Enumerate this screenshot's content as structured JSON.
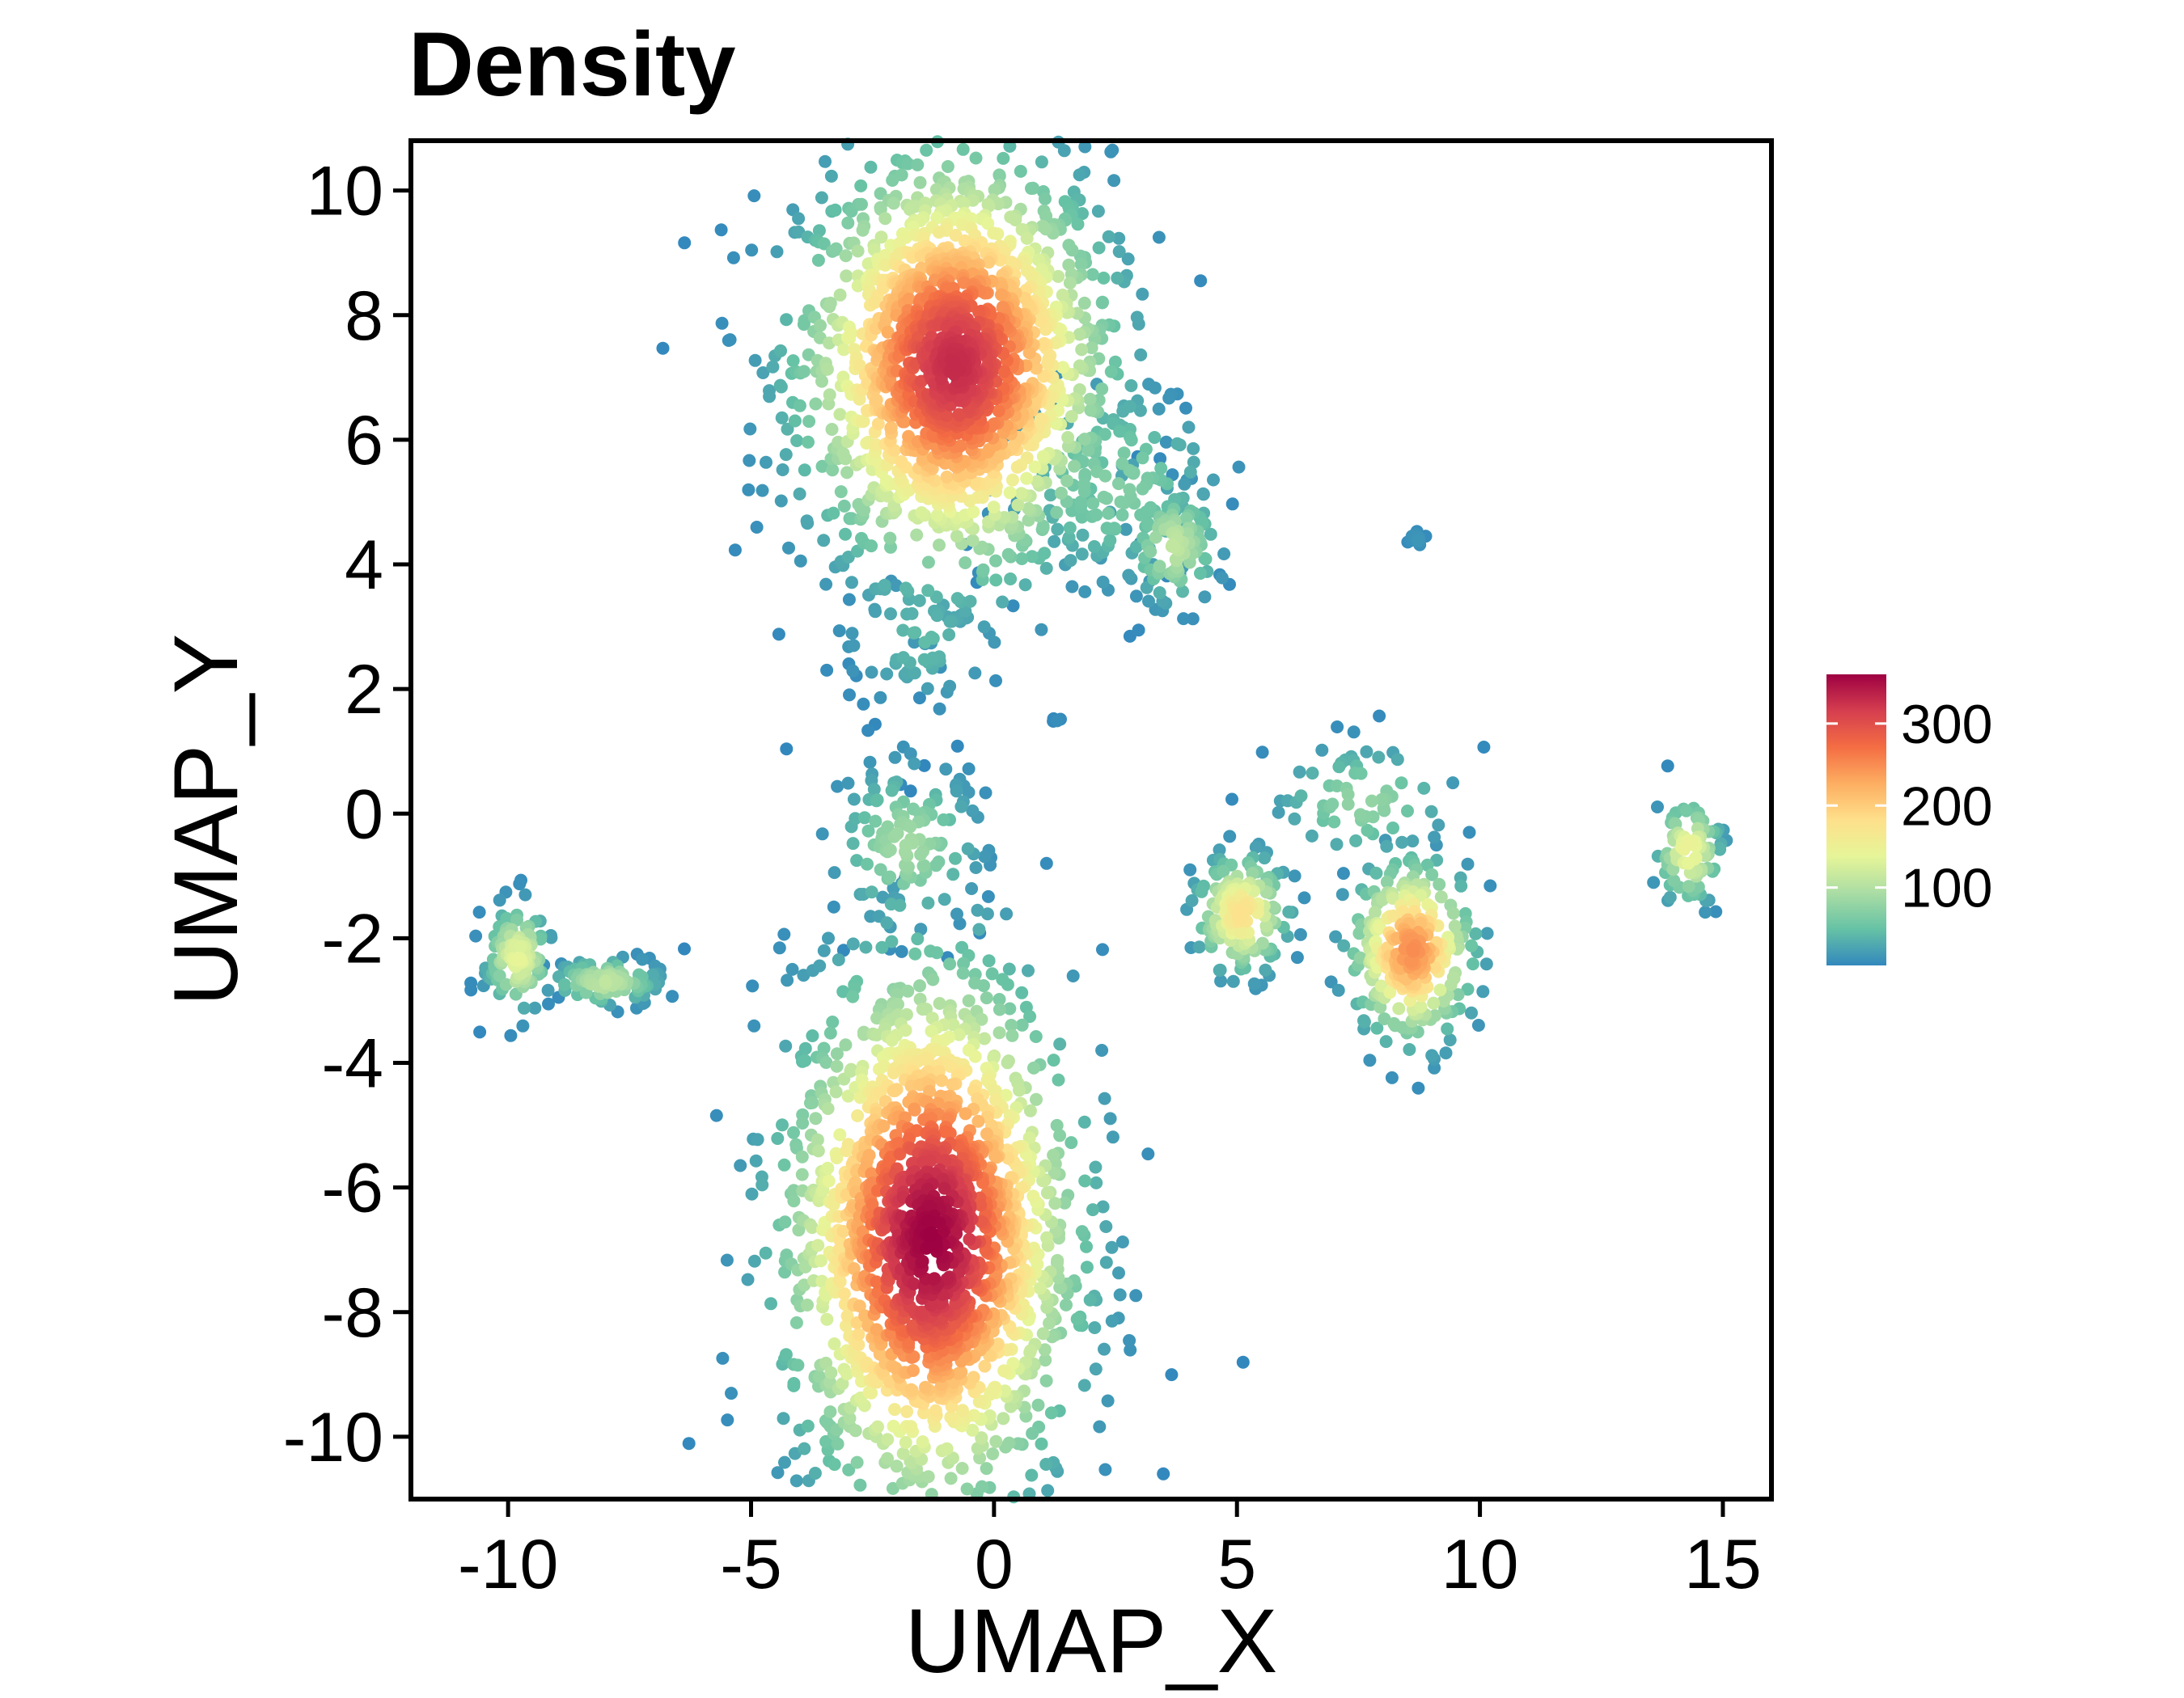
{
  "chart_data": {
    "type": "scatter",
    "title": "Density",
    "xlabel": "UMAP_X",
    "ylabel": "UMAP_Y",
    "xlim": [
      -12,
      16
    ],
    "ylim": [
      -11,
      10.8
    ],
    "x_ticks": [
      -10,
      -5,
      0,
      5,
      10,
      15
    ],
    "x_tick_labels": [
      "-10",
      "-5",
      "0",
      "5",
      "10",
      "15"
    ],
    "y_ticks": [
      10,
      8,
      6,
      4,
      2,
      0,
      -2,
      -4,
      -6,
      -8,
      -10
    ],
    "y_tick_labels": [
      "10",
      "8",
      "6",
      "4",
      "2",
      "0",
      "-2",
      "-4",
      "-6",
      "-8",
      "-10"
    ],
    "grid": false,
    "color_scale": {
      "name": "Spectral (reversed)",
      "min": 5,
      "max": 360,
      "ticks": [
        300,
        200,
        100
      ],
      "tick_labels": [
        "300",
        "200",
        "100"
      ],
      "stops": [
        "#3288bd",
        "#66c2a5",
        "#abdda4",
        "#e6f598",
        "#fee08b",
        "#fdae61",
        "#f46d43",
        "#d53e4f",
        "#9e0142"
      ]
    },
    "legend_position": "right",
    "clusters": [
      {
        "center": [
          -0.8,
          7.2
        ],
        "sd": [
          1.6,
          1.7
        ],
        "n": 1600,
        "peak_density": 330
      },
      {
        "center": [
          -1.3,
          -6.8
        ],
        "sd": [
          1.5,
          2.2
        ],
        "n": 1700,
        "peak_density": 360
      },
      {
        "center": [
          -9.8,
          -2.3
        ],
        "sd": [
          0.35,
          0.45
        ],
        "n": 120,
        "peak_density": 140
      },
      {
        "center": [
          -8,
          -2.7
        ],
        "sd": [
          0.6,
          0.2
        ],
        "n": 90,
        "peak_density": 110
      },
      {
        "center": [
          5.1,
          -1.6
        ],
        "sd": [
          0.5,
          0.5
        ],
        "n": 160,
        "peak_density": 180
      },
      {
        "center": [
          8.6,
          -2.2
        ],
        "sd": [
          0.65,
          0.75
        ],
        "n": 280,
        "peak_density": 250
      },
      {
        "center": [
          14.3,
          -0.6
        ],
        "sd": [
          0.35,
          0.45
        ],
        "n": 90,
        "peak_density": 150
      },
      {
        "center": [
          3.7,
          4.3
        ],
        "sd": [
          0.5,
          0.5
        ],
        "n": 100,
        "peak_density": 110
      },
      {
        "center": [
          -1.8,
          -0.5
        ],
        "sd": [
          0.8,
          0.7
        ],
        "n": 130,
        "peak_density": 90
      },
      {
        "center": [
          2.5,
          5.3
        ],
        "sd": [
          1.2,
          0.9
        ],
        "n": 140,
        "peak_density": 70
      },
      {
        "center": [
          -1.5,
          2.8
        ],
        "sd": [
          0.9,
          0.6
        ],
        "n": 60,
        "peak_density": 45
      },
      {
        "center": [
          7.6,
          0.2
        ],
        "sd": [
          1.0,
          0.5
        ],
        "n": 70,
        "peak_density": 80
      },
      {
        "center": [
          8.7,
          4.4
        ],
        "sd": [
          0.12,
          0.1
        ],
        "n": 14,
        "peak_density": 15
      },
      {
        "center": [
          1.3,
          1.5
        ],
        "sd": [
          0.05,
          0.05
        ],
        "n": 4,
        "peak_density": 10
      }
    ]
  }
}
